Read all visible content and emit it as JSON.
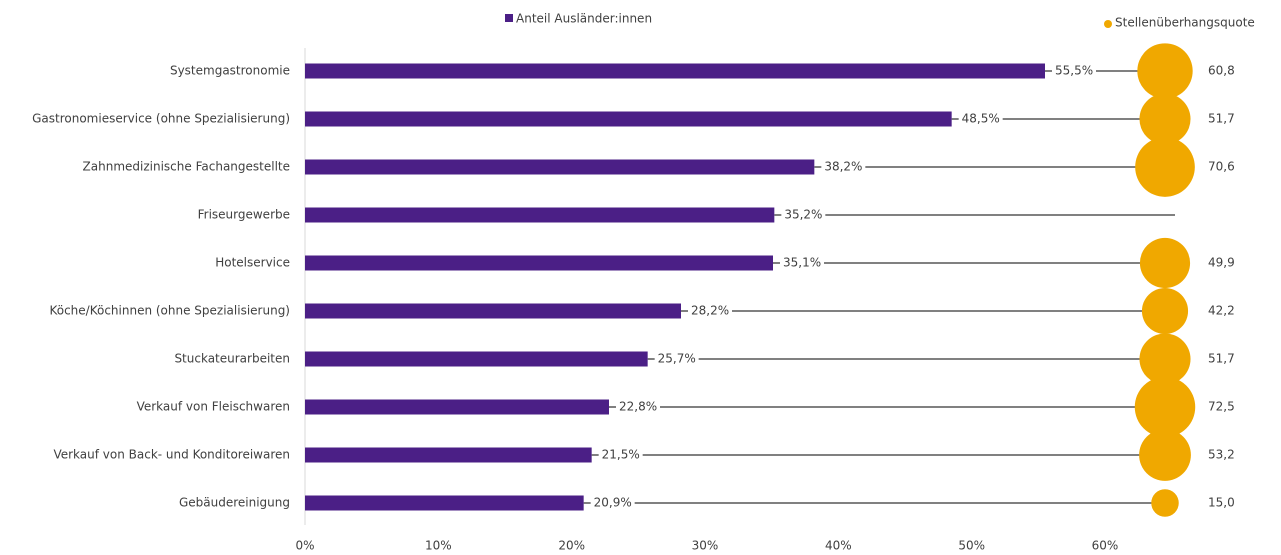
{
  "chart_data": {
    "type": "bar",
    "horizontal": true,
    "categories": [
      "Systemgastronomie",
      "Gastronomieservice (ohne Spezialisierung)",
      "Zahnmedizinische Fachangestellte",
      "Friseurgewerbe",
      "Hotelservice",
      "Köche/Köchinnen (ohne Spezialisierung)",
      "Stuckateurarbeiten",
      "Verkauf von Fleischwaren",
      "Verkauf von Back- und Konditoreiwaren",
      "Gebäudereinigung"
    ],
    "series": [
      {
        "name": "Anteil Ausländer:innen",
        "color": "#4b1f86",
        "values": [
          55.5,
          48.5,
          38.2,
          35.2,
          35.1,
          28.2,
          25.7,
          22.8,
          21.5,
          20.9
        ],
        "value_labels": [
          "55,5%",
          "48,5%",
          "38,2%",
          "35,2%",
          "35,1%",
          "28,2%",
          "25,7%",
          "22,8%",
          "21,5%",
          "20,9%"
        ]
      },
      {
        "name": "Stellenüberhangsquote",
        "color": "#f0a800",
        "mark": "bubble",
        "values": [
          60.8,
          51.7,
          70.6,
          null,
          49.9,
          42.2,
          51.7,
          72.5,
          53.2,
          15.0
        ],
        "value_labels": [
          "60,8",
          "51,7",
          "70,6",
          null,
          "49,9",
          "42,2",
          "51,7",
          "72,5",
          "53,2",
          "15,0"
        ]
      }
    ],
    "xlim": [
      0,
      60
    ],
    "xticks": [
      {
        "value": 0,
        "label": "0%"
      },
      {
        "value": 10,
        "label": "10%"
      },
      {
        "value": 20,
        "label": "20%"
      },
      {
        "value": 30,
        "label": "30%"
      },
      {
        "value": 40,
        "label": "40%"
      },
      {
        "value": 50,
        "label": "50%"
      },
      {
        "value": 60,
        "label": "60%"
      }
    ]
  }
}
